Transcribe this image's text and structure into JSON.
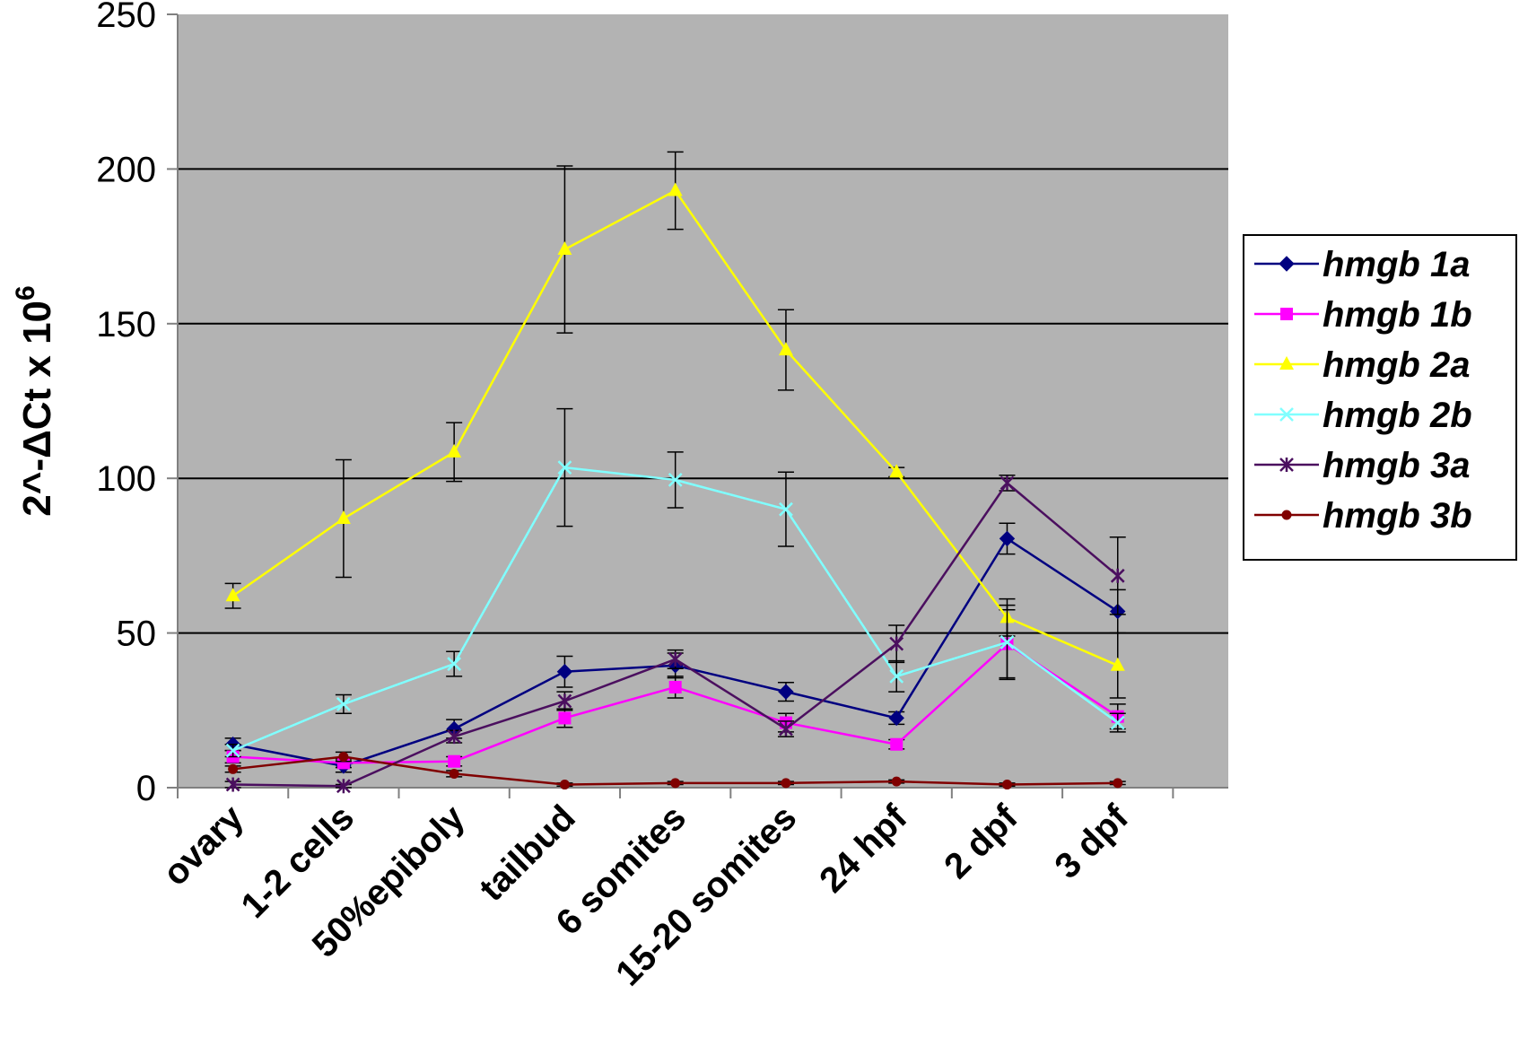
{
  "chart_data": {
    "type": "line",
    "title": "",
    "xlabel": "",
    "ylabel": "2^-ΔCt x 10",
    "ylabel_superscript": "6",
    "ylim": [
      0,
      250
    ],
    "yticks": [
      0,
      50,
      100,
      150,
      200,
      250
    ],
    "grid": "horizontal",
    "legend_position": "right",
    "background_color": "#b3b3b3",
    "categories": [
      "ovary",
      "1-2 cells",
      "50%epiboly",
      "tailbud",
      "6 somites",
      "15-20 somites",
      "24 hpf",
      "2 dpf",
      "3 dpf"
    ],
    "series": [
      {
        "name": "hmgb 1a",
        "color": "#000080",
        "marker": "diamond",
        "values": [
          14,
          7,
          19,
          37.5,
          39.5,
          31,
          22.5,
          80.5,
          57
        ],
        "errors": [
          2,
          2,
          3,
          5,
          4,
          3,
          2,
          5,
          7
        ]
      },
      {
        "name": "hmgb 1b",
        "color": "#ff00ff",
        "marker": "square",
        "values": [
          10,
          8,
          8.5,
          22.5,
          32.5,
          21,
          14,
          46.5,
          23
        ],
        "errors": [
          2,
          1.5,
          1.5,
          3,
          3.5,
          3,
          1.5,
          11,
          4
        ]
      },
      {
        "name": "hmgb 2a",
        "color": "#ffff00",
        "marker": "triangle",
        "values": [
          62,
          87,
          108.5,
          174,
          193,
          141.5,
          102,
          55,
          39.5
        ],
        "errors": [
          4,
          19,
          9.5,
          27,
          12.5,
          13,
          1.5,
          6,
          10.5
        ]
      },
      {
        "name": "hmgb 2b",
        "color": "#80ffff",
        "marker": "x",
        "values": [
          12,
          27,
          40,
          103.5,
          99.5,
          90,
          36,
          47,
          21
        ],
        "errors": [
          2,
          3,
          4,
          19,
          9,
          12,
          5,
          12,
          3
        ]
      },
      {
        "name": "hmgb 3a",
        "color": "#4b0f5f",
        "marker": "star",
        "values": [
          1,
          0.5,
          16.5,
          28,
          41.5,
          19,
          46.5,
          98.5,
          68.5
        ],
        "errors": [
          1,
          0.5,
          2,
          3,
          3,
          2.5,
          6,
          2.5,
          12.5
        ]
      },
      {
        "name": "hmgb 3b",
        "color": "#800000",
        "marker": "circle",
        "values": [
          6,
          10,
          4.5,
          1,
          1.5,
          1.5,
          2,
          1,
          1.5
        ],
        "errors": [
          1,
          1.5,
          1,
          0.5,
          0.5,
          0.5,
          0.5,
          0.5,
          0.5
        ]
      }
    ]
  }
}
